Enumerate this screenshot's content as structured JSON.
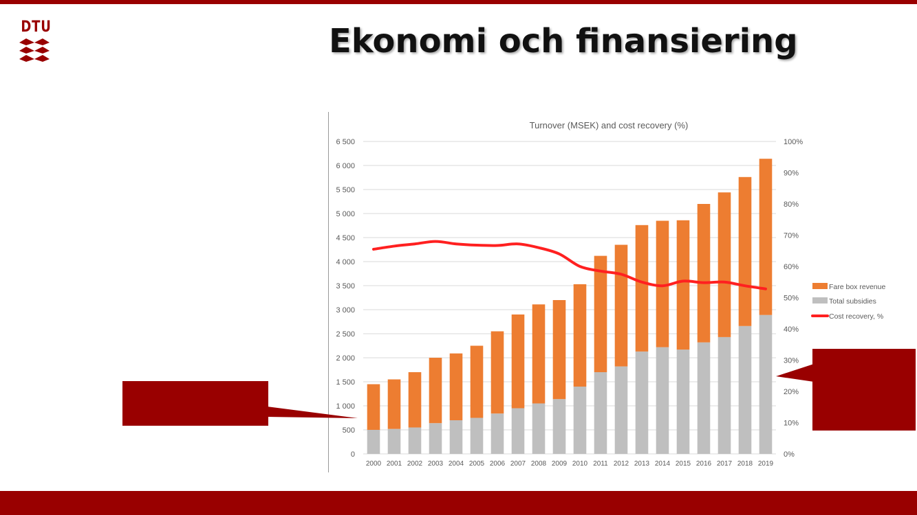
{
  "slide": {
    "title": "Ekonomi och finansiering",
    "logo_text": "DTU"
  },
  "colors": {
    "brand": "#990000",
    "fare_box": "#ED7D31",
    "subsidies": "#BFBFBF",
    "cost_recovery": "#FF2020",
    "grid": "#D9D9D9"
  },
  "chart_data": {
    "type": "bar",
    "stacked": true,
    "title": "Turnover (MSEK) and cost recovery (%)",
    "categories": [
      "2000",
      "2001",
      "2002",
      "2003",
      "2004",
      "2005",
      "2006",
      "2007",
      "2008",
      "2009",
      "2010",
      "2011",
      "2012",
      "2013",
      "2014",
      "2015",
      "2016",
      "2017",
      "2018",
      "2019"
    ],
    "series": [
      {
        "name": "Total subsidies",
        "type": "bar",
        "axis": "left",
        "values": [
          500,
          520,
          550,
          640,
          700,
          750,
          840,
          950,
          1050,
          1140,
          1400,
          1700,
          1820,
          2130,
          2220,
          2170,
          2320,
          2430,
          2660,
          2890
        ]
      },
      {
        "name": "Fare box revenue",
        "type": "bar",
        "axis": "left",
        "values": [
          950,
          1030,
          1150,
          1360,
          1390,
          1500,
          1710,
          1950,
          2060,
          2060,
          2130,
          2420,
          2530,
          2630,
          2630,
          2690,
          2880,
          3010,
          3100,
          3250
        ]
      },
      {
        "name": "Cost recovery, %",
        "type": "line",
        "axis": "right",
        "values": [
          65.5,
          66.5,
          67.2,
          68.0,
          67.2,
          66.8,
          66.7,
          67.2,
          66.0,
          64.0,
          60.0,
          58.5,
          57.5,
          55.0,
          53.8,
          55.3,
          54.8,
          55.0,
          53.8,
          52.8
        ]
      }
    ],
    "ylim": [
      0,
      6500
    ],
    "yticks": [
      "0",
      "500",
      "1 000",
      "1 500",
      "2 000",
      "2 500",
      "3 000",
      "3 500",
      "4 000",
      "4 500",
      "5 000",
      "5 500",
      "6 000",
      "6 500"
    ],
    "y2lim": [
      0,
      100
    ],
    "y2ticks": [
      "0%",
      "10%",
      "20%",
      "30%",
      "40%",
      "50%",
      "60%",
      "70%",
      "80%",
      "90%",
      "100%"
    ],
    "legend": [
      "Fare box revenue",
      "Total subsidies",
      "Cost recovery, %"
    ],
    "legend_position": "right",
    "grid": true
  }
}
